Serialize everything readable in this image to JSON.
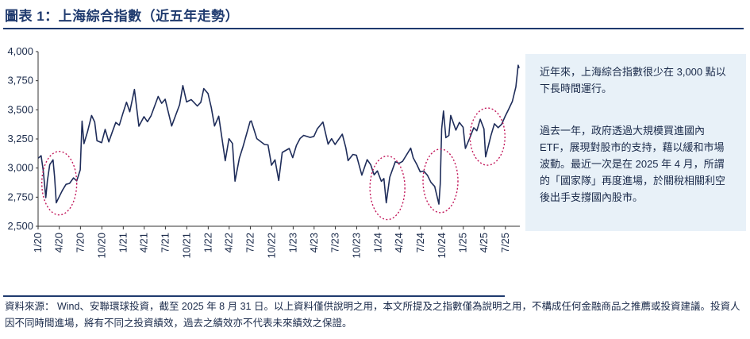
{
  "header": {
    "title": "圖表 1：上海綜合指數（近五年走勢）"
  },
  "notes": {
    "paragraph1": "近年來，上海綜合指數很少在 3,000 點以下長時間運行。",
    "paragraph2": "過去一年，政府透過大規模買進國內 ETF，展現對股市的支持，藉以緩和市場波動。最近一次是在 2025 年 4 月，所謂的「國家隊」再度進場，於關稅相關利空後出手支撐國內股市。"
  },
  "footer": {
    "source": "資料來源： Wind、安聯環球投資，截至 2025 年 8 月 31 日。以上資料僅供說明之用，本文所提及之指數僅為說明之用，不構成任何金融商品之推薦或投資建議。投資人因不同時間進場，將有不同之投資績效，過去之績效亦不代表未來績效之保證。"
  },
  "colors": {
    "line": "#1f2d5a",
    "circle": "#c2185b",
    "title": "#1f3a6e",
    "note_bg": "#e8f1f8"
  },
  "chart_data": {
    "type": "line",
    "title": "",
    "xlabel": "",
    "ylabel": "",
    "ylim": [
      2500,
      4000
    ],
    "yticks": [
      2500,
      2750,
      3000,
      3250,
      3500,
      3750,
      4000
    ],
    "ytick_labels": [
      "2,500",
      "2,750",
      "3,000",
      "3,250",
      "3,500",
      "3,750",
      "4,000"
    ],
    "xticks": [
      "1/20",
      "4/20",
      "7/20",
      "10/20",
      "1/21",
      "4/21",
      "7/21",
      "10/21",
      "1/22",
      "4/22",
      "7/22",
      "10/22",
      "1/23",
      "4/23",
      "7/23",
      "10/23",
      "1/24",
      "4/24",
      "7/24",
      "10/24",
      "1/25",
      "4/25",
      "7/25"
    ],
    "grid": false,
    "series": [
      {
        "values": [
          [
            "2020-01-02",
            3085
          ],
          [
            "2020-01-14",
            3106
          ],
          [
            "2020-01-23",
            2977
          ],
          [
            "2020-02-03",
            2746
          ],
          [
            "2020-02-10",
            2890
          ],
          [
            "2020-02-20",
            3030
          ],
          [
            "2020-03-05",
            3071
          ],
          [
            "2020-03-12",
            2923
          ],
          [
            "2020-03-19",
            2702
          ],
          [
            "2020-03-30",
            2747
          ],
          [
            "2020-04-15",
            2811
          ],
          [
            "2020-04-30",
            2860
          ],
          [
            "2020-05-15",
            2868
          ],
          [
            "2020-06-01",
            2915
          ],
          [
            "2020-06-15",
            2890
          ],
          [
            "2020-06-30",
            2984
          ],
          [
            "2020-07-03",
            3152
          ],
          [
            "2020-07-08",
            3403
          ],
          [
            "2020-07-16",
            3210
          ],
          [
            "2020-07-31",
            3310
          ],
          [
            "2020-08-18",
            3451
          ],
          [
            "2020-08-31",
            3396
          ],
          [
            "2020-09-10",
            3234
          ],
          [
            "2020-09-30",
            3218
          ],
          [
            "2020-10-15",
            3332
          ],
          [
            "2020-10-31",
            3225
          ],
          [
            "2020-11-15",
            3310
          ],
          [
            "2020-11-30",
            3392
          ],
          [
            "2020-12-15",
            3367
          ],
          [
            "2020-12-31",
            3473
          ],
          [
            "2021-01-15",
            3566
          ],
          [
            "2021-01-29",
            3483
          ],
          [
            "2021-02-18",
            3675
          ],
          [
            "2021-03-09",
            3359
          ],
          [
            "2021-03-31",
            3441
          ],
          [
            "2021-04-15",
            3398
          ],
          [
            "2021-04-30",
            3447
          ],
          [
            "2021-05-31",
            3615
          ],
          [
            "2021-06-15",
            3556
          ],
          [
            "2021-06-30",
            3591
          ],
          [
            "2021-07-28",
            3361
          ],
          [
            "2021-08-31",
            3544
          ],
          [
            "2021-09-14",
            3708
          ],
          [
            "2021-09-30",
            3568
          ],
          [
            "2021-10-20",
            3588
          ],
          [
            "2021-11-15",
            3533
          ],
          [
            "2021-11-30",
            3564
          ],
          [
            "2021-12-13",
            3682
          ],
          [
            "2021-12-31",
            3640
          ],
          [
            "2022-01-14",
            3521
          ],
          [
            "2022-01-28",
            3361
          ],
          [
            "2022-02-15",
            3446
          ],
          [
            "2022-03-15",
            3063
          ],
          [
            "2022-03-31",
            3252
          ],
          [
            "2022-04-15",
            3211
          ],
          [
            "2022-04-26",
            2887
          ],
          [
            "2022-05-15",
            3084
          ],
          [
            "2022-05-31",
            3186
          ],
          [
            "2022-06-30",
            3399
          ],
          [
            "2022-07-05",
            3405
          ],
          [
            "2022-07-29",
            3253
          ],
          [
            "2022-08-31",
            3202
          ],
          [
            "2022-09-15",
            3199
          ],
          [
            "2022-09-30",
            3024
          ],
          [
            "2022-10-15",
            3071
          ],
          [
            "2022-10-31",
            2893
          ],
          [
            "2022-11-15",
            3134
          ],
          [
            "2022-11-30",
            3151
          ],
          [
            "2022-12-15",
            3168
          ],
          [
            "2022-12-30",
            3089
          ],
          [
            "2023-01-15",
            3195
          ],
          [
            "2023-01-31",
            3255
          ],
          [
            "2023-02-15",
            3281
          ],
          [
            "2023-03-15",
            3263
          ],
          [
            "2023-03-31",
            3272
          ],
          [
            "2023-04-15",
            3338
          ],
          [
            "2023-05-09",
            3395
          ],
          [
            "2023-05-31",
            3205
          ],
          [
            "2023-06-15",
            3252
          ],
          [
            "2023-06-30",
            3202
          ],
          [
            "2023-07-31",
            3291
          ],
          [
            "2023-08-15",
            3176
          ],
          [
            "2023-08-25",
            3064
          ],
          [
            "2023-09-15",
            3117
          ],
          [
            "2023-09-30",
            3110
          ],
          [
            "2023-10-23",
            2939
          ],
          [
            "2023-11-15",
            3072
          ],
          [
            "2023-11-30",
            3030
          ],
          [
            "2023-12-15",
            2942
          ],
          [
            "2023-12-29",
            2975
          ],
          [
            "2024-01-15",
            2886
          ],
          [
            "2024-01-26",
            2910
          ],
          [
            "2024-02-05",
            2702
          ],
          [
            "2024-02-20",
            2922
          ],
          [
            "2024-03-15",
            3054
          ],
          [
            "2024-03-31",
            3041
          ],
          [
            "2024-04-15",
            3057
          ],
          [
            "2024-05-20",
            3171
          ],
          [
            "2024-05-31",
            3087
          ],
          [
            "2024-06-15",
            3032
          ],
          [
            "2024-06-30",
            2967
          ],
          [
            "2024-07-15",
            2974
          ],
          [
            "2024-07-31",
            2938
          ],
          [
            "2024-08-15",
            2877
          ],
          [
            "2024-08-31",
            2842
          ],
          [
            "2024-09-18",
            2690
          ],
          [
            "2024-09-24",
            2863
          ],
          [
            "2024-09-30",
            3336
          ],
          [
            "2024-10-08",
            3490
          ],
          [
            "2024-10-18",
            3261
          ],
          [
            "2024-10-31",
            3280
          ],
          [
            "2024-11-08",
            3452
          ],
          [
            "2024-11-30",
            3326
          ],
          [
            "2024-12-15",
            3392
          ],
          [
            "2024-12-31",
            3351
          ],
          [
            "2025-01-10",
            3168
          ],
          [
            "2025-01-27",
            3250
          ],
          [
            "2025-02-15",
            3346
          ],
          [
            "2025-02-28",
            3320
          ],
          [
            "2025-03-15",
            3419
          ],
          [
            "2025-03-31",
            3336
          ],
          [
            "2025-04-07",
            3096
          ],
          [
            "2025-04-30",
            3279
          ],
          [
            "2025-05-15",
            3380
          ],
          [
            "2025-05-31",
            3347
          ],
          [
            "2025-06-15",
            3377
          ],
          [
            "2025-06-30",
            3444
          ],
          [
            "2025-07-15",
            3505
          ],
          [
            "2025-07-31",
            3573
          ],
          [
            "2025-08-15",
            3697
          ],
          [
            "2025-08-25",
            3883
          ],
          [
            "2025-08-29",
            3858
          ]
        ]
      }
    ],
    "annotations": [
      {
        "type": "dotted-circle",
        "center": [
          "2020-04-01",
          2870
        ]
      },
      {
        "type": "dotted-circle",
        "center": [
          "2024-02-10",
          2830
        ]
      },
      {
        "type": "dotted-circle",
        "center": [
          "2024-09-25",
          2890
        ]
      },
      {
        "type": "dotted-circle",
        "center": [
          "2025-04-15",
          3270
        ]
      }
    ]
  }
}
